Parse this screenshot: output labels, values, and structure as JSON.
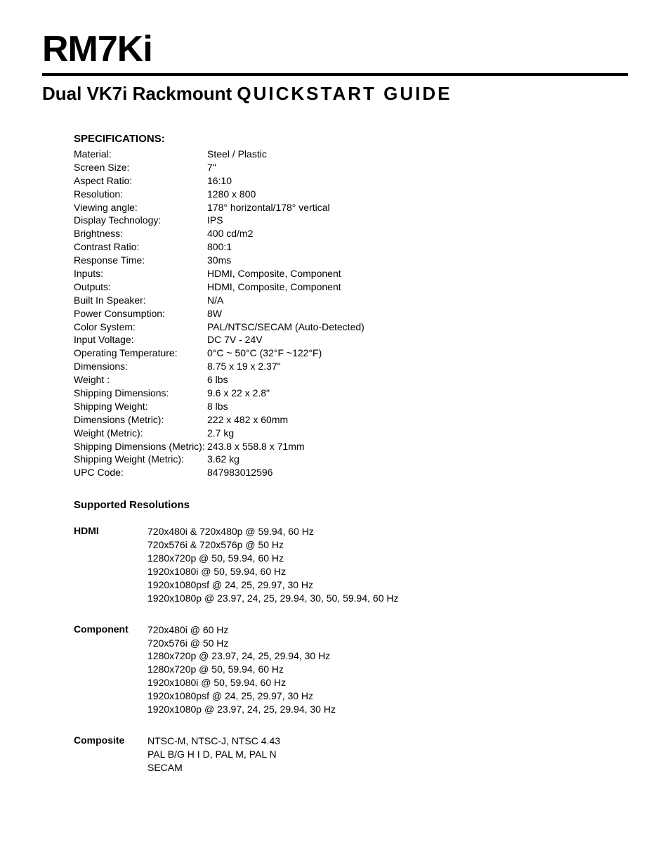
{
  "header": {
    "product_title": "RM7Ki",
    "subtitle_bold": "Dual VK7i Rackmount",
    "subtitle_light": "QUICKSTART GUIDE"
  },
  "specifications": {
    "heading": "SPECIFICATIONS:",
    "rows": [
      {
        "label": "Material:",
        "value": "Steel / Plastic"
      },
      {
        "label": "Screen Size:",
        "value": "7\""
      },
      {
        "label": "Aspect Ratio:",
        "value": "16:10"
      },
      {
        "label": "Resolution:",
        "value": "1280 x 800"
      },
      {
        "label": "Viewing angle:",
        "value": "178° horizontal/178° vertical"
      },
      {
        "label": "Display Technology:",
        "value": "IPS"
      },
      {
        "label": "Brightness:",
        "value": "400 cd/m2"
      },
      {
        "label": "Contrast Ratio:",
        "value": "800:1"
      },
      {
        "label": "Response Time:",
        "value": "30ms"
      },
      {
        "label": "Inputs:",
        "value": "HDMI, Composite, Component"
      },
      {
        "label": "Outputs:",
        "value": "HDMI, Composite, Component"
      },
      {
        "label": "Built In Speaker:",
        "value": "N/A"
      },
      {
        "label": "Power Consumption:",
        "value": " 8W"
      },
      {
        "label": "Color System:",
        "value": " PAL/NTSC/SECAM (Auto-Detected)"
      },
      {
        "label": "Input Voltage:",
        "value": " DC 7V - 24V"
      },
      {
        "label": "Operating Temperature:",
        "value": " 0°C ~ 50°C (32°F ~122°F)"
      },
      {
        "label": "Dimensions:",
        "value": " 8.75 x 19 x 2.37\""
      },
      {
        "label": "Weight :",
        "value": "6 lbs"
      },
      {
        "label": "Shipping Dimensions:",
        "value": " 9.6 x 22 x 2.8\""
      },
      {
        "label": "Shipping Weight:",
        "value": " 8 lbs"
      },
      {
        "label": "Dimensions (Metric):",
        "value": " 222 x 482 x 60mm"
      },
      {
        "label": "Weight (Metric):",
        "value": " 2.7 kg"
      },
      {
        "label": "Shipping Dimensions (Metric):",
        "value": " 243.8 x 558.8 x 71mm"
      },
      {
        "label": "Shipping Weight (Metric):",
        "value": " 3.62 kg"
      },
      {
        "label": "UPC Code:",
        "value": " 847983012596"
      }
    ]
  },
  "supported_resolutions": {
    "heading": "Supported Resolutions",
    "groups": [
      {
        "label": "HDMI",
        "lines": [
          "720x480i & 720x480p @ 59.94, 60 Hz",
          "720x576i & 720x576p @ 50 Hz",
          "1280x720p @ 50, 59.94, 60 Hz",
          "1920x1080i @ 50, 59.94, 60 Hz",
          "1920x1080psf @ 24, 25, 29.97, 30 Hz",
          "1920x1080p @ 23.97, 24, 25, 29.94, 30, 50, 59.94, 60 Hz"
        ]
      },
      {
        "label": "Component",
        "lines": [
          " 720x480i @ 60 Hz",
          " 720x576i @ 50 Hz",
          "1280x720p @ 23.97, 24, 25, 29.94, 30 Hz",
          "1280x720p @ 50, 59.94, 60 Hz",
          "1920x1080i @ 50, 59.94, 60 Hz",
          "1920x1080psf @ 24, 25, 29.97, 30 Hz",
          "1920x1080p @ 23.97, 24, 25, 29.94, 30 Hz"
        ]
      },
      {
        "label": "Composite",
        "lines": [
          "NTSC-M, NTSC-J, NTSC 4.43",
          " PAL B/G H I D, PAL M, PAL N",
          " SECAM"
        ]
      }
    ]
  }
}
